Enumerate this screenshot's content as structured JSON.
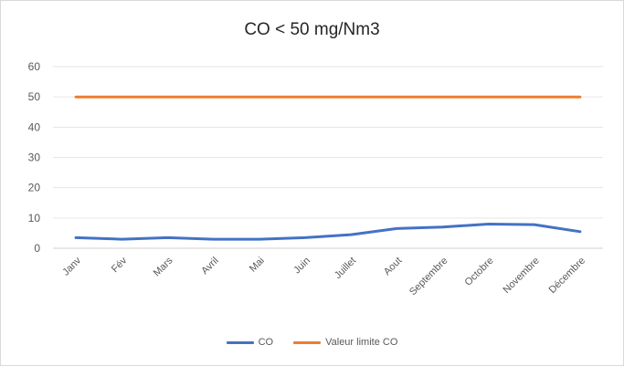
{
  "chart_data": {
    "type": "line",
    "title": "CO < 50 mg/Nm3",
    "xlabel": "",
    "ylabel": "",
    "categories": [
      "Janv",
      "Fév",
      "Mars",
      "Avril",
      "Mai",
      "Juin",
      "Juillet",
      "Aout",
      "Septembre",
      "Octobre",
      "Novembre",
      "Décembre"
    ],
    "y_ticks": [
      "0",
      "10",
      "20",
      "30",
      "40",
      "50",
      "60"
    ],
    "ylim": [
      0,
      60
    ],
    "grid": true,
    "legend_position": "bottom",
    "series": [
      {
        "name": "CO",
        "color": "#4472c4",
        "values": [
          3.5,
          3.0,
          3.5,
          3.0,
          3.0,
          3.5,
          4.5,
          6.5,
          7.0,
          8.0,
          7.8,
          5.5
        ]
      },
      {
        "name": "Valeur limite CO",
        "color": "#ed7d31",
        "values": [
          50,
          50,
          50,
          50,
          50,
          50,
          50,
          50,
          50,
          50,
          50,
          50
        ]
      }
    ]
  }
}
